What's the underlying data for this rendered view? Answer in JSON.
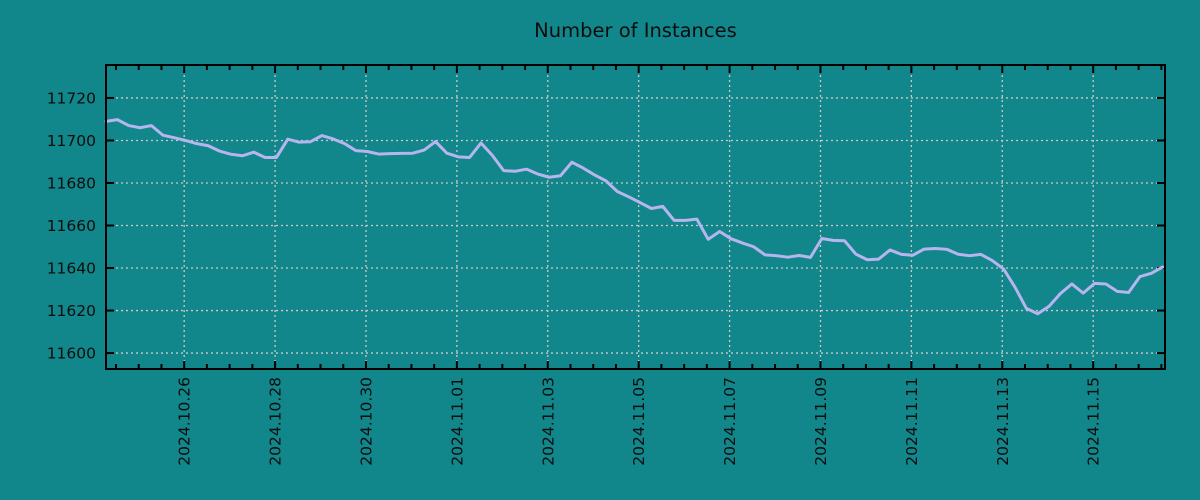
{
  "title": "Number of Instances",
  "colors": {
    "background": "#11868b",
    "line": "#b7b5ee",
    "grid": "#c9c9c9",
    "axis": "#000000",
    "text": "#0d0d0d"
  },
  "chart_data": {
    "type": "line",
    "title": "Number of Instances",
    "series_name": "instances",
    "legend": false,
    "grid": true,
    "y_ticks": [
      11600,
      11620,
      11640,
      11660,
      11680,
      11700,
      11720
    ],
    "ylim": [
      11592.5,
      11735.5
    ],
    "x_tick_labels": [
      "2024.10.26",
      "2024.10.28",
      "2024.10.30",
      "2024.11.01",
      "2024.11.03",
      "2024.11.05",
      "2024.11.07",
      "2024.11.09",
      "2024.11.11",
      "2024.11.13",
      "2024.11.15"
    ],
    "x_axis": {
      "days_between_labels": 2,
      "days_before_first_label": 1.72,
      "days_after_last_label": 1.58,
      "minor_tick_interval_days": 0.5
    },
    "sample_interval_hours": 6,
    "values": [
      11709,
      11709.8,
      11707,
      11706,
      11707,
      11702.5,
      11701.3,
      11700,
      11698.5,
      11697.5,
      11695,
      11693.5,
      11692.8,
      11694.5,
      11692,
      11692,
      11700.6,
      11699.2,
      11699.4,
      11702.3,
      11700.7,
      11698.5,
      11695.2,
      11694.8,
      11693.6,
      11693.8,
      11693.9,
      11694,
      11695.5,
      11699.5,
      11694,
      11692.3,
      11692,
      11698.8,
      11693,
      11685.8,
      11685.5,
      11686.5,
      11684.2,
      11682.7,
      11683.4,
      11689.8,
      11687,
      11683.8,
      11681,
      11676,
      11673.5,
      11670.8,
      11668,
      11669,
      11662.4,
      11662.4,
      11663,
      11653.5,
      11657.2,
      11653.8,
      11651.8,
      11650,
      11646.2,
      11645.8,
      11645.1,
      11645.9,
      11645,
      11653.9,
      11653,
      11652.8,
      11646.5,
      11643.9,
      11644.2,
      11648.5,
      11646.4,
      11646,
      11648.9,
      11649.2,
      11648.8,
      11646.5,
      11645.8,
      11646.4,
      11643.5,
      11639.5,
      11631,
      11621,
      11618.5,
      11622,
      11628,
      11632.5,
      11628.2,
      11632.8,
      11632.5,
      11629,
      11628.5,
      11636,
      11637.5,
      11640.5
    ]
  }
}
